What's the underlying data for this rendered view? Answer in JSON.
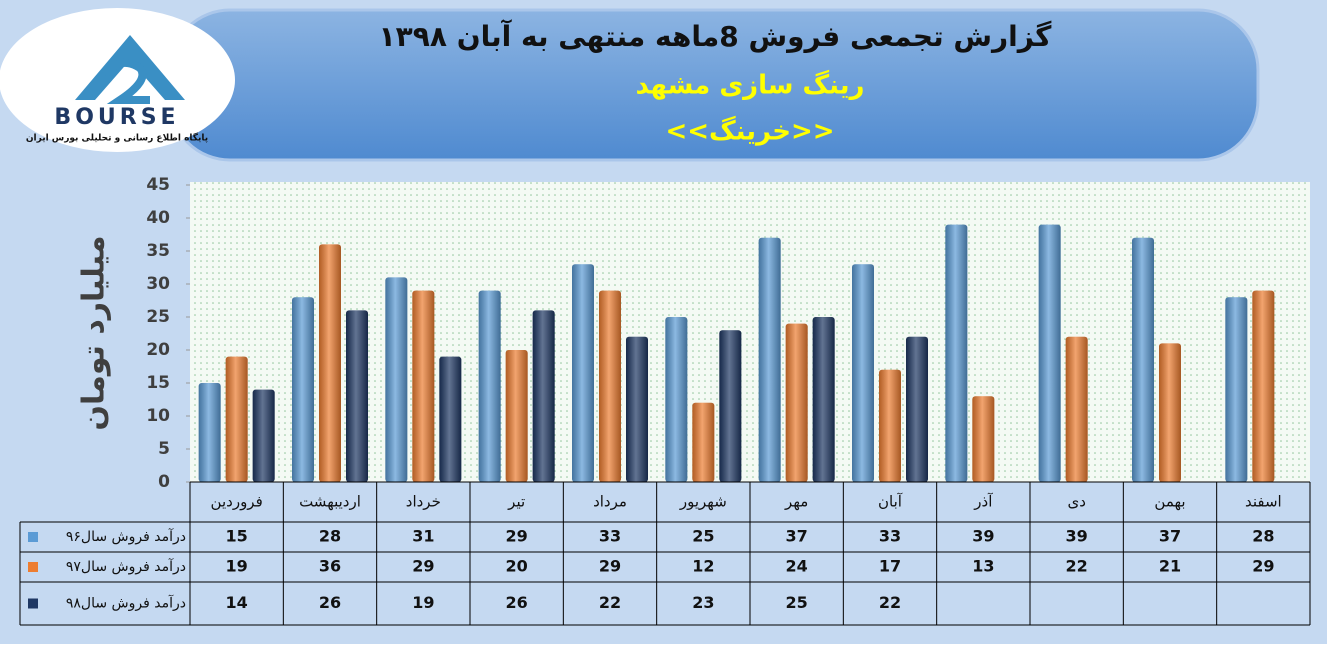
{
  "logo": {
    "name": "BOURSE",
    "tagline": "پایگاه اطلاع رسانی و تحلیلی بورس ایران"
  },
  "chart_data": {
    "type": "bar",
    "title": "گزارش تجمعی فروش  8ماهه منتهی به آبان ۱۳۹۸",
    "subtitle": "رینگ سازی مشهد",
    "annotation": "<<خرینگ>>",
    "y_label": "میلیارد تومان",
    "categories": [
      "فروردین",
      "اردیبهشت",
      "خرداد",
      "تیر",
      "مرداد",
      "شهریور",
      "مهر",
      "آبان",
      "آذر",
      "دی",
      "بهمن",
      "اسفند"
    ],
    "series": [
      {
        "name": "درآمد فروش سال۹۶",
        "color": "#5b9bd5",
        "values": [
          15,
          28,
          31,
          29,
          33,
          25,
          37,
          33,
          39,
          39,
          37,
          28
        ]
      },
      {
        "name": "درآمد فروش سال۹۷",
        "color": "#ed7d31",
        "values": [
          19,
          36,
          29,
          20,
          29,
          12,
          24,
          17,
          13,
          22,
          21,
          29
        ]
      },
      {
        "name": "درآمد فروش سال۹۸",
        "color": "#1f3864",
        "values": [
          14,
          26,
          19,
          26,
          22,
          23,
          25,
          22,
          null,
          null,
          null,
          null
        ]
      }
    ],
    "ylim": [
      0,
      45
    ],
    "yticks": [
      0,
      5,
      10,
      15,
      20,
      25,
      30,
      35,
      40,
      45
    ],
    "grid": false
  }
}
